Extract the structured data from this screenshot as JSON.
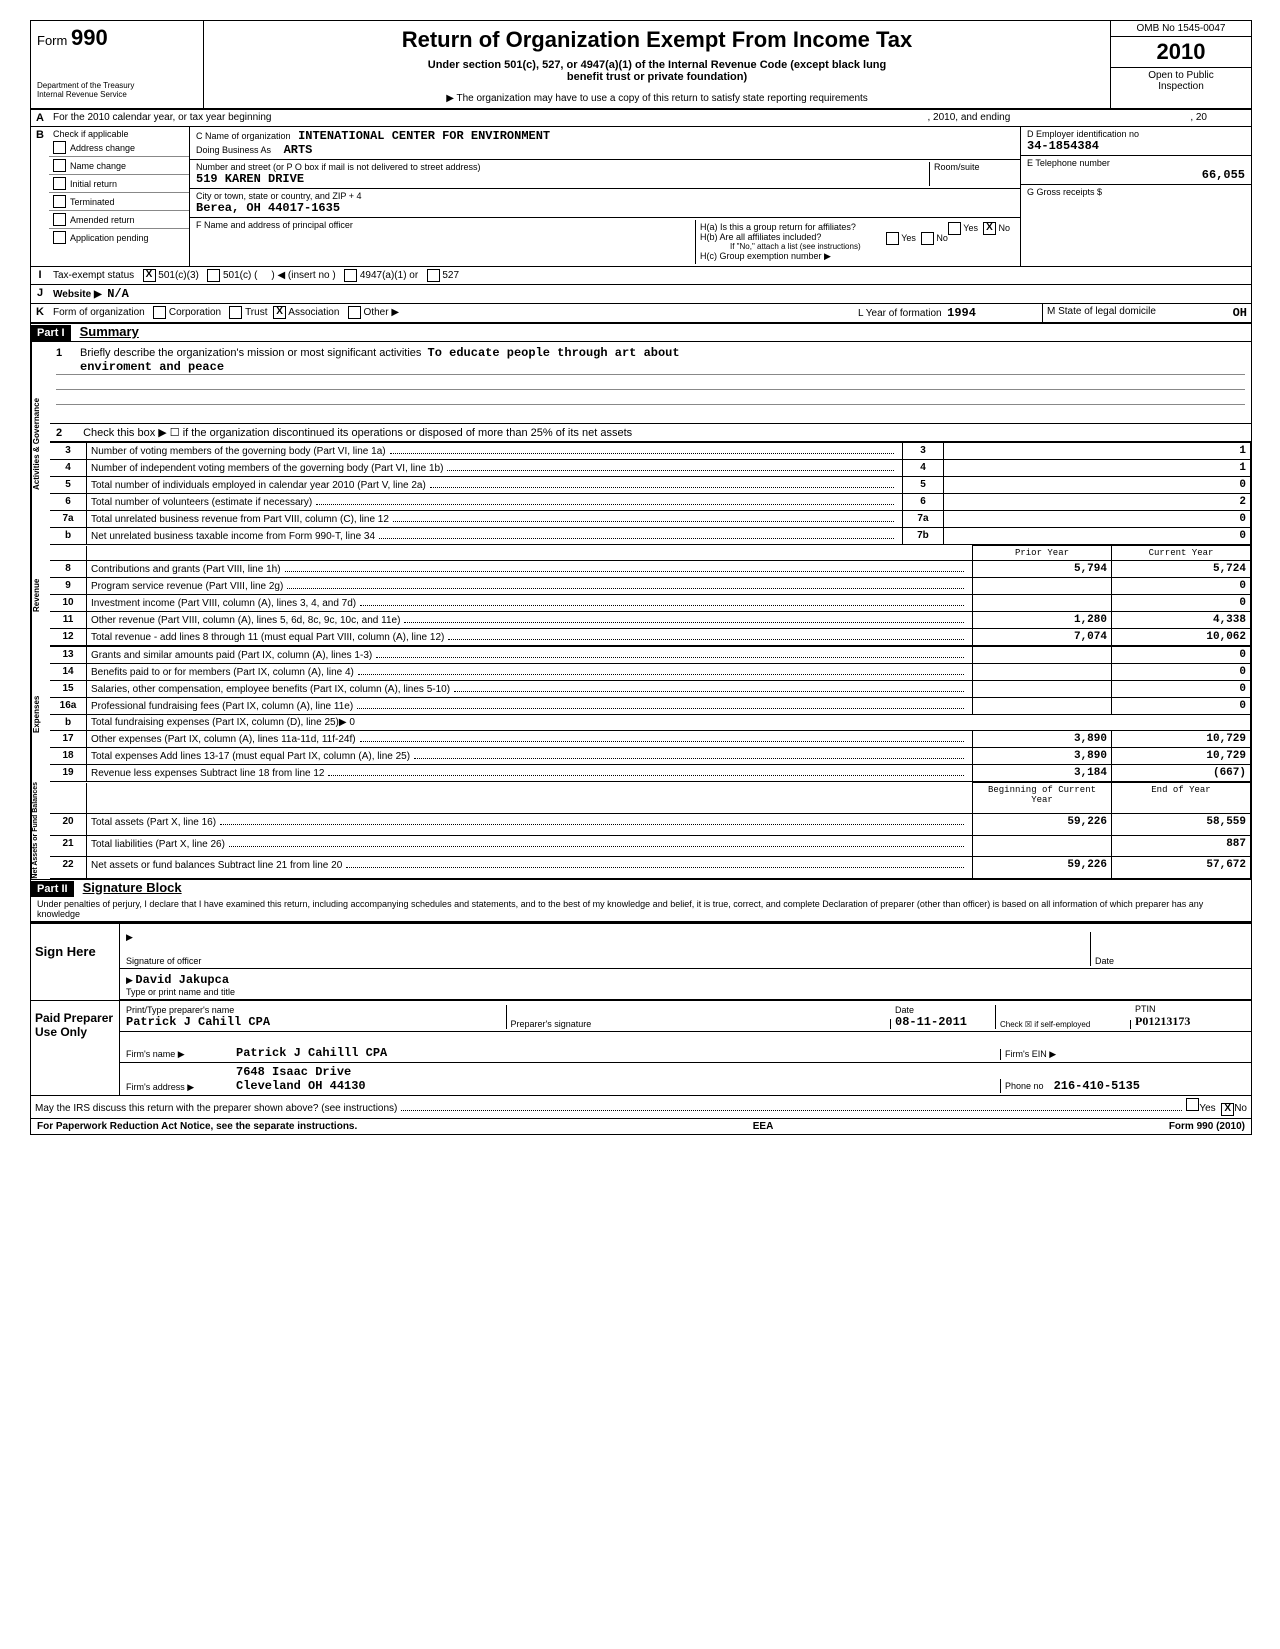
{
  "header": {
    "form_label": "Form",
    "form_number": "990",
    "dept": "Department of the Treasury",
    "irs": "Internal Revenue Service",
    "title": "Return of Organization Exempt From Income Tax",
    "subtitle1": "Under section 501(c), 527, or 4947(a)(1) of the Internal Revenue Code (except black lung",
    "subtitle2": "benefit trust or private foundation)",
    "copy_note": "▶  The organization may have to use a copy of this return to satisfy state reporting requirements",
    "omb": "OMB No 1545-0047",
    "year": "2010",
    "inspect1": "Open to Public",
    "inspect2": "Inspection"
  },
  "line_a": {
    "letter": "A",
    "text": "For the 2010 calendar year, or tax year beginning",
    "mid": ", 2010, and ending",
    "end": ", 20"
  },
  "section_b": {
    "check_label": "Check if applicable",
    "checks": [
      "Address change",
      "Name change",
      "Initial return",
      "Terminated",
      "Amended return",
      "Application pending"
    ],
    "c_label": "C  Name of organization",
    "org_name": "INTENATIONAL CENTER FOR ENVIRONMENT",
    "dba_label": "Doing Business As",
    "dba": "ARTS",
    "addr_label": "Number and street (or P O  box if mail is not delivered to street address)",
    "addr": "519 KAREN DRIVE",
    "room_label": "Room/suite",
    "city_label": "City or town, state or country, and ZIP + 4",
    "city": "Berea, OH 44017-1635",
    "f_label": "F   Name and address of principal officer",
    "d_label": "D   Employer identification no",
    "ein": "34-1854384",
    "e_label": "E   Telephone number",
    "phone": "66,055",
    "g_label": "G  Gross receipts   $",
    "h_a": "H(a)   Is this a group return for affiliates?",
    "h_b": "H(b)   Are all affiliates included?",
    "h_b_note": "If \"No,\" attach a list  (see instructions)",
    "h_c": "H(c)   Group exemption number  ▶",
    "yes": "Yes",
    "no": "No"
  },
  "line_i": {
    "label": "Tax-exempt status",
    "opts": [
      "501(c)(3)",
      "501(c) (",
      ")  ◀  (insert no )",
      "4947(a)(1) or",
      "527"
    ]
  },
  "line_j": {
    "label": "Website  ▶",
    "value": "N/A"
  },
  "line_k": {
    "label": "Form of organization",
    "opts": [
      "Corporation",
      "Trust",
      "Association",
      "Other  ▶"
    ],
    "l_label": "L  Year of formation",
    "l_val": "1994",
    "m_label": "M   State of legal domicile",
    "m_val": "OH"
  },
  "part1": {
    "header": "Part I",
    "title": "Summary",
    "line1_label": "Briefly describe the organization's mission or most significant activities",
    "line1_val": "To educate people through art about",
    "line1_val2": "enviroment and peace",
    "line2": "Check this box ▶ ☐ if the organization discontinued its operations or disposed of more than 25% of its net assets",
    "rows_a": [
      {
        "n": "3",
        "d": "Number of voting members of the governing body (Part VI, line 1a)",
        "ln": "3",
        "v": "1"
      },
      {
        "n": "4",
        "d": "Number of independent voting members of the governing body (Part VI, line 1b)",
        "ln": "4",
        "v": "1"
      },
      {
        "n": "5",
        "d": "Total number of individuals employed in calendar year 2010 (Part V, line 2a)",
        "ln": "5",
        "v": "0"
      },
      {
        "n": "6",
        "d": "Total number of volunteers (estimate if necessary)",
        "ln": "6",
        "v": "2"
      },
      {
        "n": "7a",
        "d": "Total unrelated business revenue from Part VIII, column (C), line 12",
        "ln": "7a",
        "v": "0"
      },
      {
        "n": "b",
        "d": "Net unrelated business taxable income from Form 990-T, line 34",
        "ln": "7b",
        "v": "0"
      }
    ],
    "col_headers": [
      "Prior Year",
      "Current Year"
    ],
    "rows_b": [
      {
        "n": "8",
        "d": "Contributions and grants (Part VIII, line 1h)",
        "p": "5,794",
        "c": "5,724"
      },
      {
        "n": "9",
        "d": "Program service revenue (Part VIII, line 2g)",
        "p": "",
        "c": "0"
      },
      {
        "n": "10",
        "d": "Investment income (Part VIII, column (A), lines 3, 4, and 7d)",
        "p": "",
        "c": "0"
      },
      {
        "n": "11",
        "d": "Other revenue (Part VIII, column (A), lines 5, 6d, 8c, 9c, 10c, and 11e)",
        "p": "1,280",
        "c": "4,338"
      },
      {
        "n": "12",
        "d": "Total revenue - add lines 8 through 11 (must equal Part VIII, column (A), line 12)",
        "p": "7,074",
        "c": "10,062"
      },
      {
        "n": "13",
        "d": "Grants and similar amounts paid (Part IX, column (A), lines 1-3)",
        "p": "",
        "c": "0"
      },
      {
        "n": "14",
        "d": "Benefits paid to or for members (Part IX, column (A), line 4)",
        "p": "",
        "c": "0"
      },
      {
        "n": "15",
        "d": "Salaries, other compensation, employee benefits (Part IX, column (A), lines 5-10)",
        "p": "",
        "c": "0"
      },
      {
        "n": "16a",
        "d": "Professional fundraising fees (Part IX, column (A), line 11e)",
        "p": "",
        "c": "0"
      },
      {
        "n": "b",
        "d": "Total fundraising expenses (Part IX, column (D), line 25)▶                                    0",
        "p": null,
        "c": null
      },
      {
        "n": "17",
        "d": "Other expenses (Part IX, column (A), lines 11a-11d, 11f-24f)",
        "p": "3,890",
        "c": "10,729"
      },
      {
        "n": "18",
        "d": "Total expenses  Add lines 13-17 (must equal Part IX, column (A), line 25)",
        "p": "3,890",
        "c": "10,729"
      },
      {
        "n": "19",
        "d": "Revenue less expenses   Subtract line 18 from line 12",
        "p": "3,184",
        "c": "(667)"
      }
    ],
    "col_headers2": [
      "Beginning of Current Year",
      "End of Year"
    ],
    "rows_c": [
      {
        "n": "20",
        "d": "Total assets (Part X, line 16)",
        "p": "59,226",
        "c": "58,559"
      },
      {
        "n": "21",
        "d": "Total liabilities (Part X, line 26)",
        "p": "",
        "c": "887"
      },
      {
        "n": "22",
        "d": "Net assets or fund balances   Subtract line 21 from line 20",
        "p": "59,226",
        "c": "57,672"
      }
    ],
    "vert_labels": [
      "Activities & Governance",
      "Revenue",
      "Expenses",
      "Net Assets or Fund Balances"
    ]
  },
  "part2": {
    "header": "Part II",
    "title": "Signature Block",
    "penalty": "Under penalties of perjury, I declare that I have examined this return, including accompanying schedules and statements, and to the best of my knowledge and belief, it is true, correct, and complete  Declaration of preparer (other than officer) is based on all information of which preparer has any knowledge",
    "sign_here": "Sign Here",
    "sig_label": "Signature of officer",
    "date_label": "Date",
    "name_label": "Type or print name and title",
    "officer_name": "David Jakupca",
    "paid": "Paid Preparer Use Only",
    "prep_name_label": "Print/Type preparer's name",
    "prep_name": "Patrick J Cahill CPA",
    "prep_sig_label": "Preparer's signature",
    "prep_date": "08-11-2011",
    "check_self": "Check ☒ if self-employed",
    "ptin_label": "PTIN",
    "ptin": "P01213173",
    "firm_name_label": "Firm's name     ▶",
    "firm_name": "Patrick J Cahilll CPA",
    "firm_ein_label": "Firm's EIN  ▶",
    "firm_addr_label": "Firm's address   ▶",
    "firm_addr1": "7648 Isaac Drive",
    "firm_addr2": "Cleveland OH 44130",
    "phone_label": "Phone no",
    "phone": "216-410-5135",
    "discuss": "May the IRS discuss this return with the preparer shown above? (see instructions)",
    "paperwork": "For Paperwork Reduction Act Notice, see the separate instructions.",
    "eea": "EEA",
    "form_foot": "Form 990 (2010)"
  }
}
